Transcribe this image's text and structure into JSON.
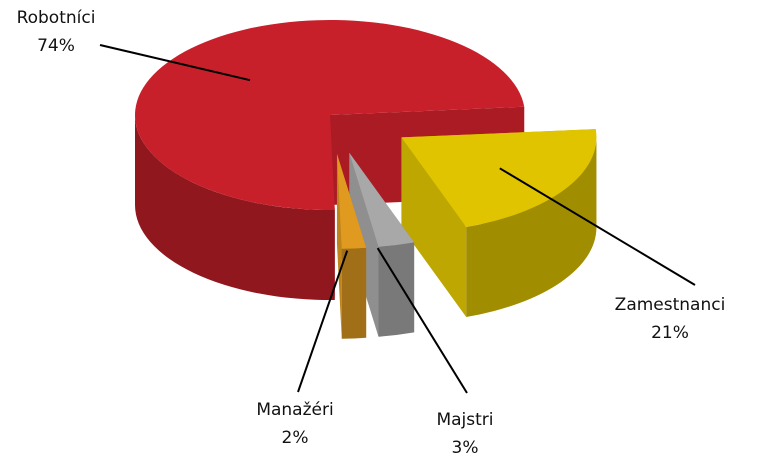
{
  "chart_data": {
    "type": "pie3d",
    "categories": [
      "Robotníci",
      "Zamestnanci",
      "Majstri",
      "Manažéri"
    ],
    "values": [
      74,
      21,
      3,
      2
    ],
    "value_labels": [
      "74%",
      "21%",
      "3%",
      "2%"
    ],
    "colors": [
      "#c8202a",
      "#e0c400",
      "#a8a8a8",
      "#e09a20"
    ]
  }
}
